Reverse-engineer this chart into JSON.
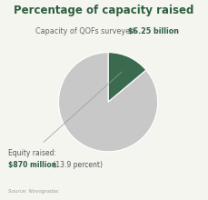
{
  "title": "Percentage of capacity raised",
  "subtitle_plain": "Capacity of QOFs surveyed: ",
  "subtitle_bold": "$6.25 billion",
  "slices": [
    13.9,
    86.1
  ],
  "colors": [
    "#3a6b4e",
    "#c8c8c8"
  ],
  "label_line1": "Equity raised:",
  "label_line2_bold": "$870 million",
  "label_line2_plain": " (13.9 percent)",
  "source": "Source: Novogradac",
  "title_color": "#2d5f3f",
  "subtitle_plain_color": "#666666",
  "subtitle_bold_color": "#2d5f3f",
  "label_color": "#555555",
  "label_bold_color": "#2d5f3f",
  "source_color": "#999999",
  "background_color": "#f5f5f0"
}
